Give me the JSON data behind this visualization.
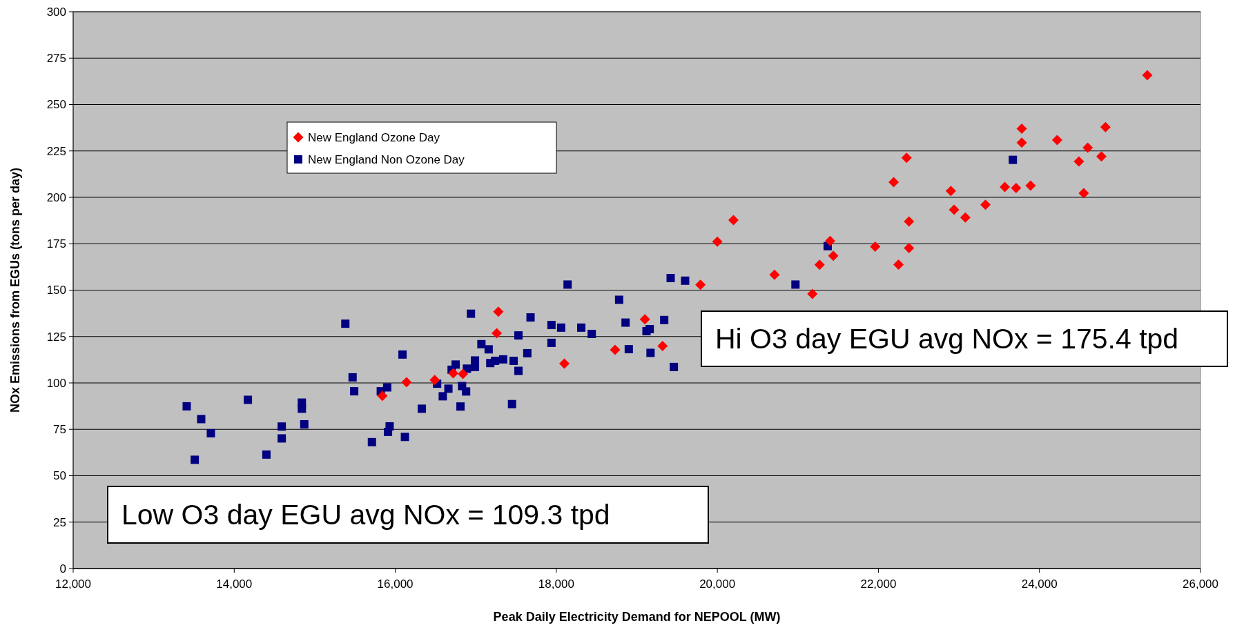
{
  "chart_data": {
    "type": "scatter",
    "xlabel": "Peak Daily Electricity Demand for NEPOOL (MW)",
    "ylabel": "NOx Emissions from EGUs (tons per day)",
    "xlim": [
      12000,
      26000
    ],
    "xticks": [
      {
        "value": 12000,
        "label": "12,000"
      },
      {
        "value": 14000,
        "label": "14,000"
      },
      {
        "value": 16000,
        "label": "16,000"
      },
      {
        "value": 18000,
        "label": "18,000"
      },
      {
        "value": 20000,
        "label": "20,000"
      },
      {
        "value": 22000,
        "label": "22,000"
      },
      {
        "value": 24000,
        "label": "24,000"
      },
      {
        "value": 26000,
        "label": "26,000"
      }
    ],
    "ylim": [
      0,
      300
    ],
    "yticks": [
      0,
      25,
      50,
      75,
      100,
      125,
      150,
      175,
      200,
      225,
      250,
      275,
      300
    ],
    "grid": "y",
    "legend": "top left",
    "annotations": [
      "Low O3 day EGU avg NOx = 109.3 tpd",
      "Hi O3 day EGU avg NOx = 175.4 tpd"
    ],
    "series": [
      {
        "name": "New England Ozone Day",
        "color": "#ff0000",
        "marker": "diamond",
        "x": [
          15840,
          16140,
          16490,
          16720,
          16840,
          17260,
          17280,
          18100,
          18730,
          19100,
          19320,
          19790,
          20000,
          20200,
          20710,
          21180,
          21270,
          21400,
          21440,
          21960,
          22190,
          22350,
          22380,
          22380,
          22250,
          22900,
          22940,
          23080,
          23330,
          23570,
          23710,
          23780,
          23780,
          23890,
          24220,
          24490,
          24550,
          24600,
          24770,
          24820,
          25340
        ],
        "values": [
          93,
          100.4,
          101.6,
          105.2,
          104.8,
          126.8,
          138.4,
          110.4,
          117.8,
          134.3,
          119.9,
          152.9,
          176.1,
          187.7,
          158.3,
          148,
          163.7,
          176.5,
          168.5,
          173.4,
          208.2,
          221.3,
          187,
          172.7,
          163.8,
          203.4,
          193.3,
          189.1,
          196,
          205.6,
          205,
          237,
          229.5,
          206.3,
          230.9,
          219.3,
          202.2,
          226.8,
          222,
          237.8,
          265.8
        ]
      },
      {
        "name": "New England Non Ozone Day",
        "color": "#000080",
        "marker": "square",
        "x": [
          13410,
          13590,
          13710,
          13510,
          14170,
          14400,
          14590,
          14590,
          14840,
          14840,
          14870,
          15380,
          15470,
          15490,
          15710,
          15820,
          15900,
          15930,
          15910,
          16090,
          16120,
          16330,
          16520,
          16590,
          16660,
          16700,
          16750,
          16810,
          16830,
          16880,
          16890,
          16940,
          16990,
          16990,
          17070,
          17160,
          17180,
          17240,
          17340,
          17450,
          17470,
          17530,
          17530,
          17640,
          17680,
          17940,
          18060,
          18310,
          18440,
          17940,
          18140,
          18780,
          18860,
          18900,
          19120,
          19160,
          19170,
          19340,
          19460,
          19420,
          19600,
          20970,
          21370,
          23670
        ],
        "values": [
          87.4,
          80.5,
          72.9,
          58.6,
          90.9,
          61.4,
          76.5,
          70.1,
          89.4,
          86.1,
          77.7,
          131.9,
          103,
          95.5,
          68.1,
          95.5,
          97.6,
          76.6,
          73.6,
          115.3,
          70.9,
          86.1,
          99.6,
          92.8,
          96.9,
          107.1,
          109.9,
          87.3,
          98.3,
          95.4,
          107.7,
          137.3,
          112.1,
          108.6,
          120.9,
          118.1,
          110.7,
          111.9,
          112.7,
          88.6,
          111.9,
          125.6,
          106.5,
          116,
          135.3,
          131.2,
          129.8,
          129.8,
          126.4,
          121.6,
          153,
          144.8,
          132.5,
          118.2,
          127.9,
          129,
          116.2,
          133.9,
          108.6,
          156.5,
          155.1,
          153,
          173.7,
          220.2
        ]
      }
    ]
  }
}
